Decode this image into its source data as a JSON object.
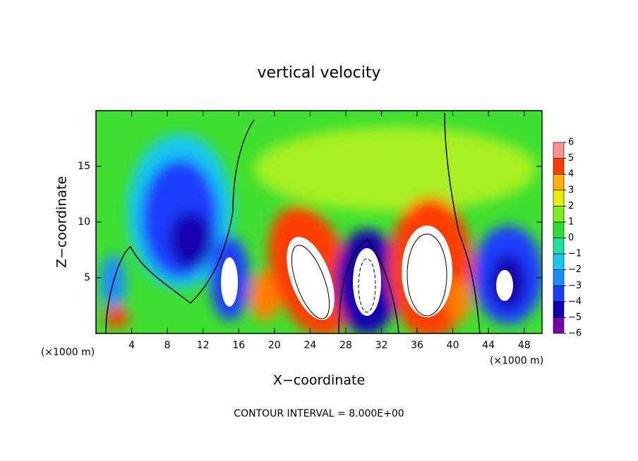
{
  "chart_data": {
    "type": "contour",
    "title": "vertical velocity",
    "x_label": "X−coordinate",
    "y_label": "Z−coordinate",
    "x_unit": "(×1000 m)",
    "x_unit_right": "(×1000 m)",
    "footnote": "CONTOUR INTERVAL = 8.000E+00",
    "xlim": [
      0,
      50
    ],
    "xticks": [
      4,
      8,
      12,
      16,
      20,
      24,
      28,
      32,
      36,
      40,
      44,
      48
    ],
    "ylim": [
      0,
      20
    ],
    "yticks": [
      5,
      10,
      15
    ],
    "colorbar": {
      "levels": [
        {
          "value": -6,
          "label": "−6"
        },
        {
          "value": -5,
          "label": "−5"
        },
        {
          "value": -4,
          "label": "−4"
        },
        {
          "value": -3,
          "label": "−3"
        },
        {
          "value": -2,
          "label": "−2"
        },
        {
          "value": -1,
          "label": "−1"
        },
        0,
        1,
        2,
        3,
        4,
        5,
        6
      ],
      "colors": [
        "#7800a8",
        "#1400b0",
        "#1a3cff",
        "#1e8cff",
        "#14c8f0",
        "#20e0a0",
        "#30dc30",
        "#7af020",
        "#e6f000",
        "#ffb000",
        "#ff3c00",
        "#ff9090"
      ]
    }
  }
}
